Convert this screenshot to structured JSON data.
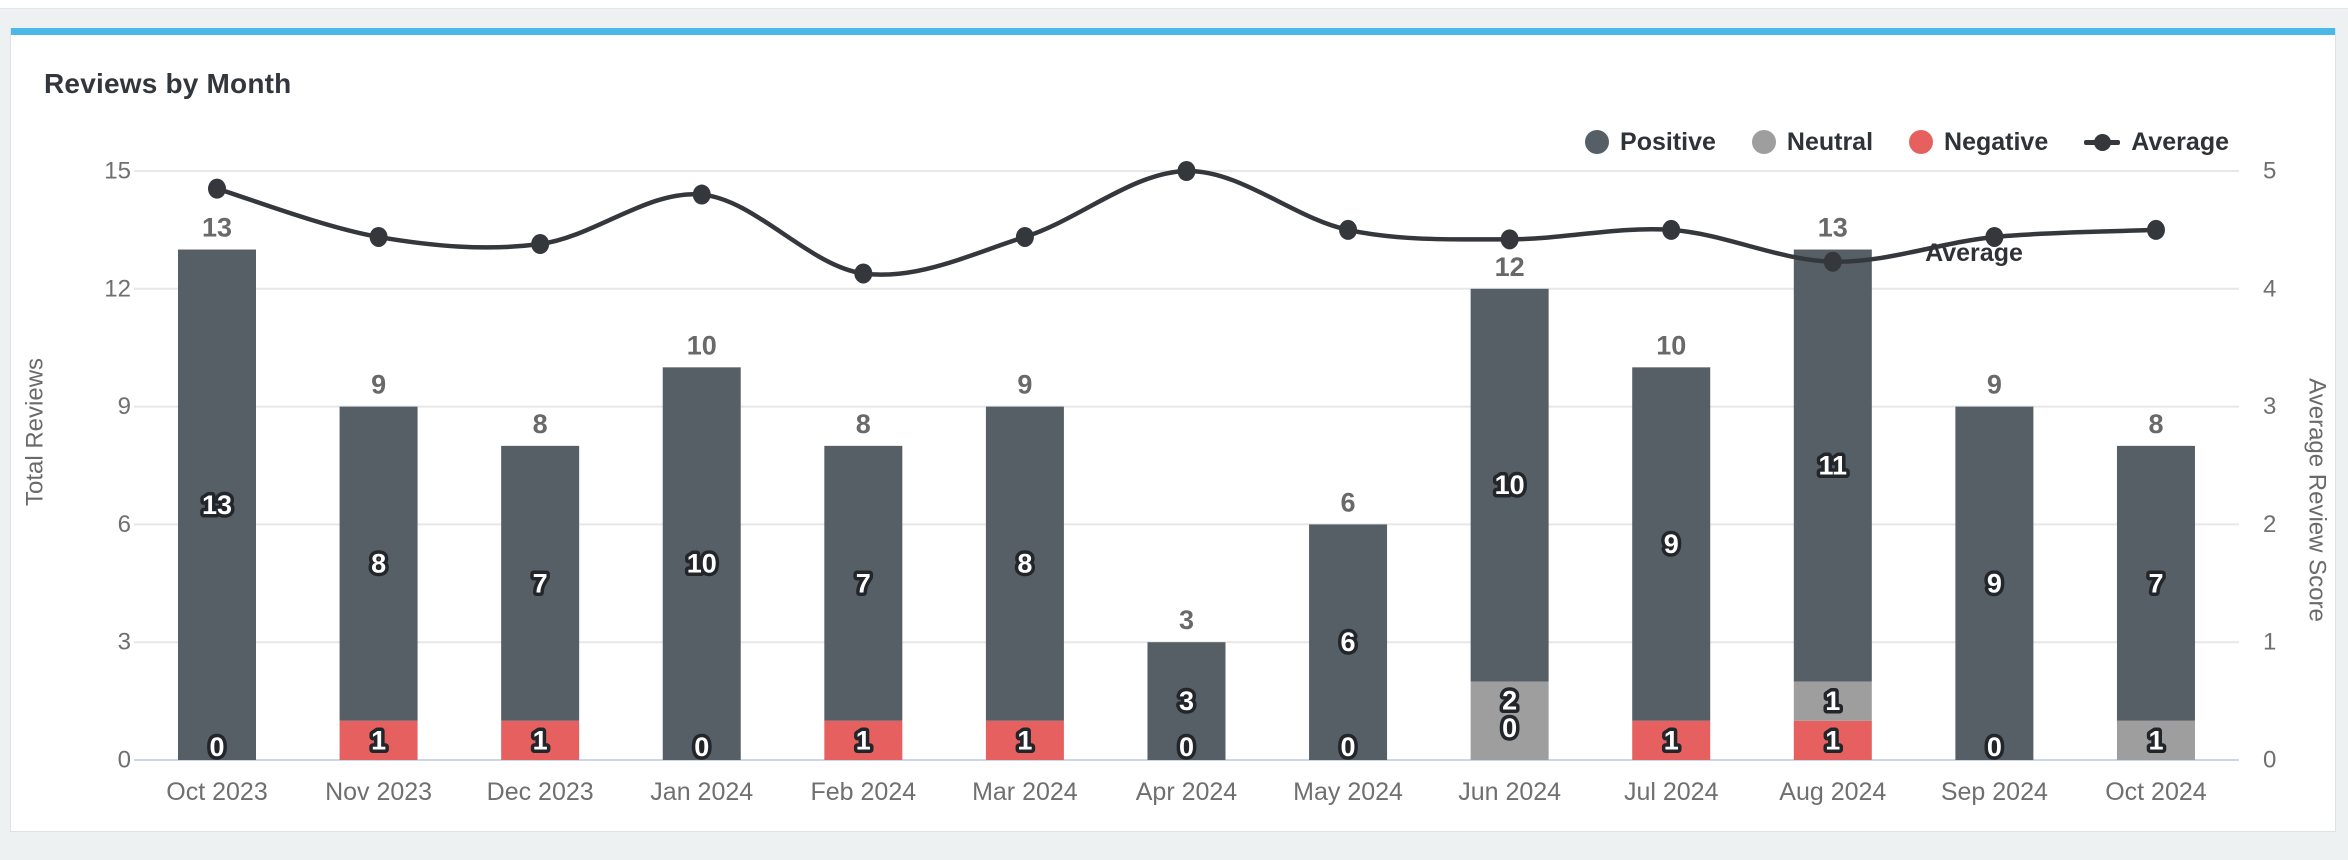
{
  "card": {
    "title": "Reviews by Month"
  },
  "chart_data": {
    "type": "bar+line",
    "title": "Reviews by Month",
    "stacked": true,
    "grid": "horizontal",
    "legend_position": "top-right",
    "categories": [
      "Oct 2023",
      "Nov 2023",
      "Dec 2023",
      "Jan 2024",
      "Feb 2024",
      "Mar 2024",
      "Apr 2024",
      "May 2024",
      "Jun 2024",
      "Jul 2024",
      "Aug 2024",
      "Sep 2024",
      "Oct 2024"
    ],
    "series": [
      {
        "name": "Positive",
        "type": "bar",
        "color": "#565e66",
        "values": [
          13,
          8,
          7,
          10,
          7,
          8,
          3,
          6,
          10,
          9,
          11,
          9,
          7
        ]
      },
      {
        "name": "Neutral",
        "type": "bar",
        "color": "#9e9e9e",
        "values": [
          0,
          0,
          0,
          0,
          0,
          0,
          0,
          0,
          2,
          0,
          1,
          0,
          1
        ]
      },
      {
        "name": "Negative",
        "type": "bar",
        "color": "#e5605f",
        "values": [
          0,
          1,
          1,
          0,
          1,
          1,
          0,
          0,
          0,
          1,
          1,
          0,
          0
        ]
      },
      {
        "name": "Average",
        "type": "line",
        "axis": "right",
        "color": "#34383d",
        "values": [
          4.85,
          4.44,
          4.38,
          4.8,
          4.13,
          4.44,
          5.0,
          4.5,
          4.42,
          4.5,
          4.23,
          4.44,
          4.5
        ]
      }
    ],
    "totals": [
      13,
      9,
      8,
      10,
      8,
      9,
      3,
      6,
      12,
      10,
      13,
      9,
      8
    ],
    "left_axis": {
      "label": "Total Reviews",
      "ticks": [
        0,
        3,
        6,
        9,
        12,
        15
      ],
      "range": [
        0,
        15
      ]
    },
    "right_axis": {
      "label": "Average Review Score",
      "ticks": [
        0,
        1,
        2,
        3,
        4,
        5
      ],
      "range": [
        0,
        5
      ]
    },
    "line_end_label": "Average",
    "colors": {
      "accent_bar": "#4bb9e8",
      "gridline": "#e7e7e7",
      "baseline": "#ccd6eb",
      "tick_text": "#6f6f6f",
      "axis_title_text": "#6a6a6a",
      "total_label_text": "#696969",
      "inner_label_text": "#ffffff",
      "inner_label_outline": "#22262a"
    }
  }
}
